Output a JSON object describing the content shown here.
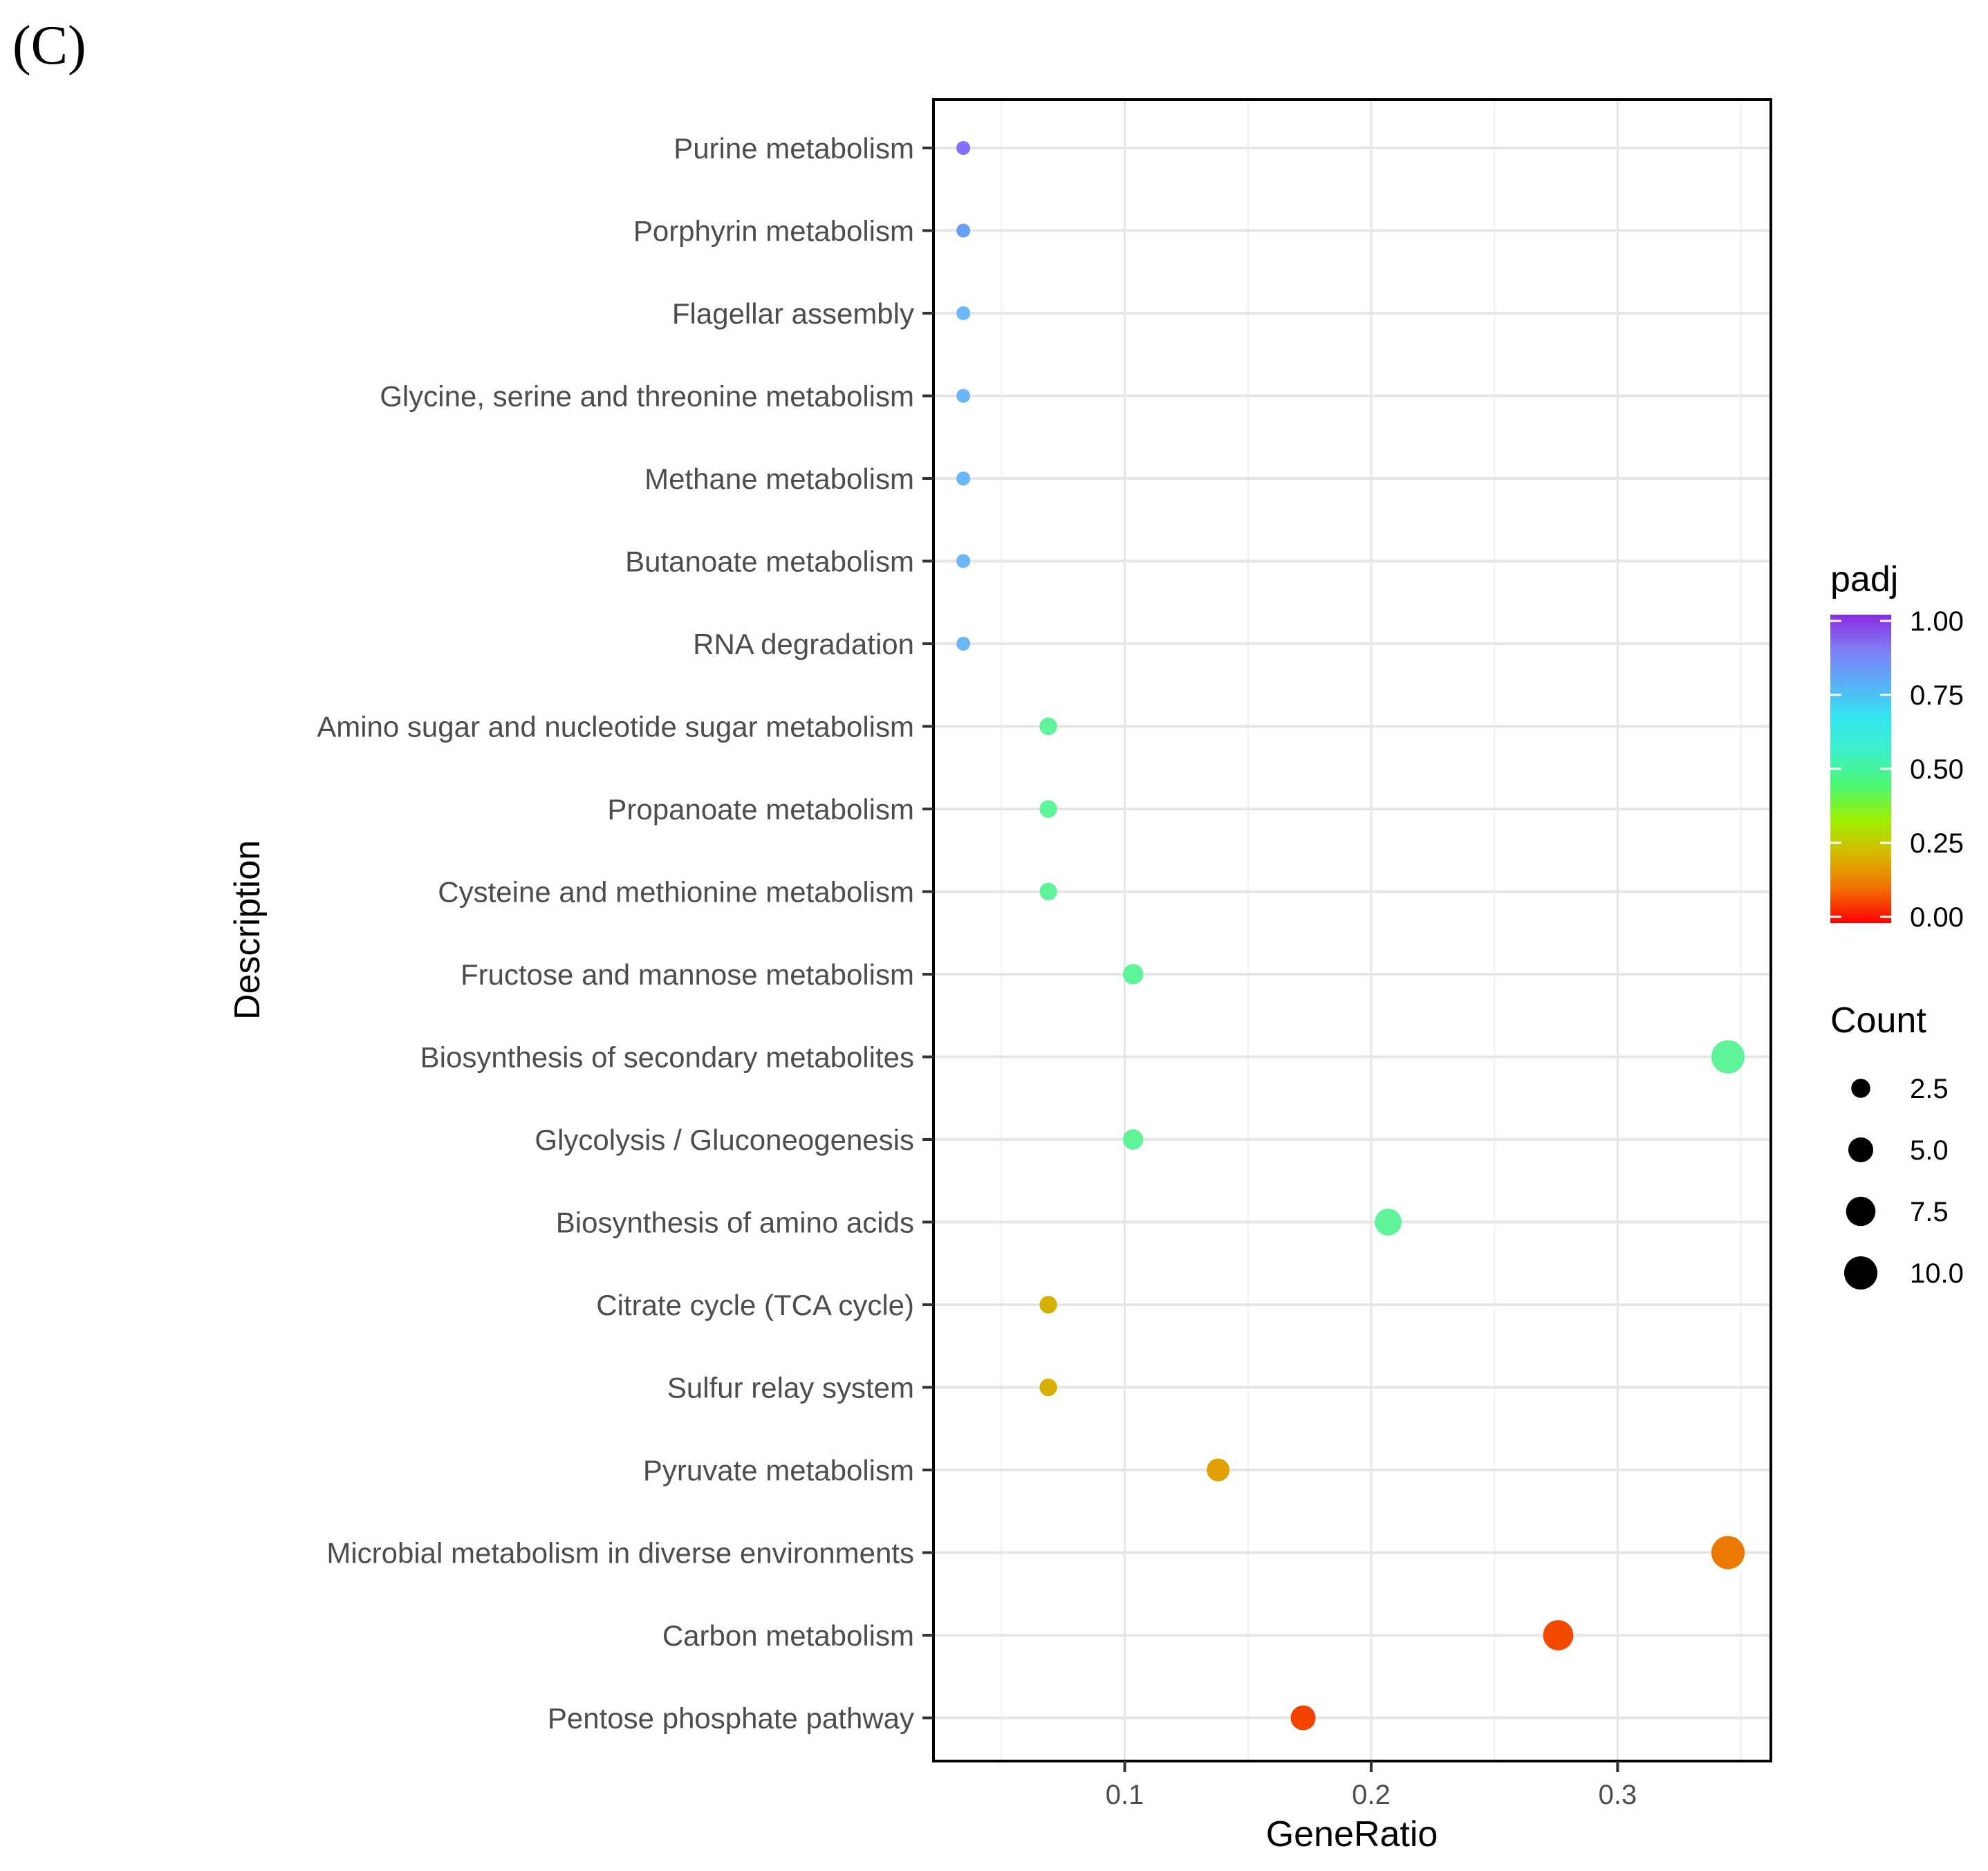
{
  "panel_label": "(C)",
  "chart_data": {
    "type": "scatter",
    "title": "",
    "xlabel": "GeneRatio",
    "ylabel": "Description",
    "xlim": [
      0.0224,
      0.3622
    ],
    "x_ticks": [
      0.1,
      0.2,
      0.3
    ],
    "x_tick_labels": [
      "0.1",
      "0.2",
      "0.3"
    ],
    "x_minor_ticks": [
      0.05,
      0.15,
      0.25,
      0.35
    ],
    "grid": true,
    "categories": [
      "Purine metabolism",
      "Porphyrin metabolism",
      "Flagellar assembly",
      "Glycine, serine and threonine metabolism",
      "Methane metabolism",
      "Butanoate metabolism",
      "RNA degradation",
      "Amino sugar and nucleotide sugar metabolism",
      "Propanoate metabolism",
      "Cysteine and methionine metabolism",
      "Fructose and mannose metabolism",
      "Biosynthesis of secondary metabolites",
      "Glycolysis / Gluconeogenesis",
      "Biosynthesis of amino acids",
      "Citrate cycle (TCA cycle)",
      "Sulfur relay system",
      "Pyruvate metabolism",
      "Microbial metabolism in diverse environments",
      "Carbon metabolism",
      "Pentose phosphate pathway"
    ],
    "points": [
      {
        "description": "Purine metabolism",
        "gene_ratio": 0.0345,
        "count": 1,
        "padj": 0.88,
        "color": "#8470FF"
      },
      {
        "description": "Porphyrin metabolism",
        "gene_ratio": 0.0345,
        "count": 1,
        "padj": 0.8,
        "color": "#6A9DF4"
      },
      {
        "description": "Flagellar assembly",
        "gene_ratio": 0.0345,
        "count": 1,
        "padj": 0.74,
        "color": "#6BB6F6"
      },
      {
        "description": "Glycine, serine and threonine metabolism",
        "gene_ratio": 0.0345,
        "count": 1,
        "padj": 0.74,
        "color": "#6BB6F6"
      },
      {
        "description": "Methane metabolism",
        "gene_ratio": 0.0345,
        "count": 1,
        "padj": 0.74,
        "color": "#6BB6F6"
      },
      {
        "description": "Butanoate metabolism",
        "gene_ratio": 0.0345,
        "count": 1,
        "padj": 0.74,
        "color": "#6BB6F6"
      },
      {
        "description": "RNA degradation",
        "gene_ratio": 0.0345,
        "count": 1,
        "padj": 0.74,
        "color": "#6BB6F6"
      },
      {
        "description": "Amino sugar and nucleotide sugar metabolism",
        "gene_ratio": 0.069,
        "count": 2,
        "padj": 0.53,
        "color": "#5FF39A"
      },
      {
        "description": "Propanoate metabolism",
        "gene_ratio": 0.069,
        "count": 2,
        "padj": 0.53,
        "color": "#5FF39A"
      },
      {
        "description": "Cysteine and methionine metabolism",
        "gene_ratio": 0.069,
        "count": 2,
        "padj": 0.53,
        "color": "#5FF39A"
      },
      {
        "description": "Fructose and mannose metabolism",
        "gene_ratio": 0.1034,
        "count": 3,
        "padj": 0.53,
        "color": "#5FF39A"
      },
      {
        "description": "Biosynthesis of secondary metabolites",
        "gene_ratio": 0.3448,
        "count": 10,
        "padj": 0.53,
        "color": "#5FF39A"
      },
      {
        "description": "Glycolysis / Gluconeogenesis",
        "gene_ratio": 0.1034,
        "count": 3,
        "padj": 0.53,
        "color": "#5FF39A"
      },
      {
        "description": "Biosynthesis of amino acids",
        "gene_ratio": 0.2069,
        "count": 6,
        "padj": 0.53,
        "color": "#5FF39A"
      },
      {
        "description": "Citrate cycle (TCA cycle)",
        "gene_ratio": 0.069,
        "count": 2,
        "padj": 0.19,
        "color": "#D4B000"
      },
      {
        "description": "Sulfur relay system",
        "gene_ratio": 0.069,
        "count": 2,
        "padj": 0.19,
        "color": "#D4B000"
      },
      {
        "description": "Pyruvate metabolism",
        "gene_ratio": 0.1379,
        "count": 4,
        "padj": 0.16,
        "color": "#DFA000"
      },
      {
        "description": "Microbial metabolism in diverse environments",
        "gene_ratio": 0.3448,
        "count": 10,
        "padj": 0.11,
        "color": "#EC7A00"
      },
      {
        "description": "Carbon metabolism",
        "gene_ratio": 0.2759,
        "count": 8,
        "padj": 0.04,
        "color": "#F24A00"
      },
      {
        "description": "Pentose phosphate pathway",
        "gene_ratio": 0.1724,
        "count": 5,
        "padj": 0.03,
        "color": "#F24400"
      }
    ],
    "color_legend": {
      "title": "padj",
      "ticks": [
        1.0,
        0.75,
        0.5,
        0.25,
        0.0
      ],
      "labels": [
        "1.00",
        "0.75",
        "0.50",
        "0.25",
        "0.00"
      ],
      "gradient": [
        "#FF0000",
        "#F07000",
        "#D8B800",
        "#9EF000",
        "#4CF870",
        "#3DF0C8",
        "#32E6F0",
        "#5AAEF5",
        "#7E7CF5",
        "#8A2BE2"
      ]
    },
    "size_legend": {
      "title": "Count",
      "values": [
        2.5,
        5.0,
        7.5,
        10.0
      ],
      "labels": [
        "2.5",
        "5.0",
        "7.5",
        "10.0"
      ],
      "color": "#000000"
    }
  }
}
